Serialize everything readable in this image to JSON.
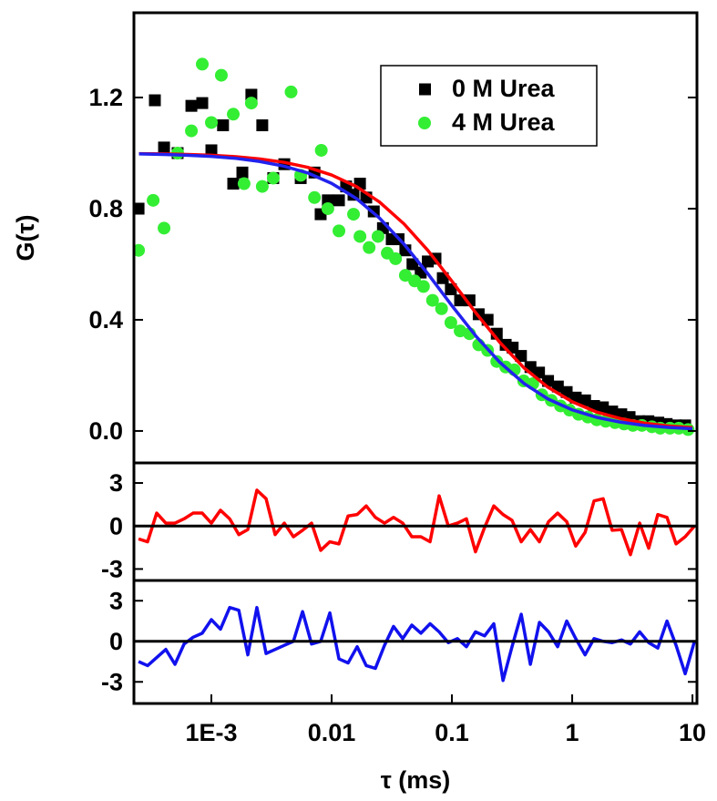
{
  "chart_data": [
    {
      "type": "scatter",
      "ylabel": "G(τ)",
      "xscale": "log",
      "xlim": [
        0.000227,
        10.9
      ],
      "ylim": [
        -0.115,
        1.505
      ],
      "yticks": [
        {
          "value": 0,
          "label": "0.0"
        },
        0.4,
        0.8,
        1.2
      ],
      "legend": "upper right",
      "series": [
        {
          "name": "0 M Urea",
          "type": "scatter",
          "marker": "square",
          "color": "#000000",
          "x": [
            0.000248,
            0.000339,
            0.000404,
            0.000524,
            0.000682,
            0.00084,
            0.001,
            0.00125,
            0.00152,
            0.00181,
            0.00215,
            0.00265,
            0.00327,
            0.00404,
            0.00553,
            0.0072,
            0.0081,
            0.0093,
            0.0115,
            0.0132,
            0.0152,
            0.0172,
            0.0194,
            0.0224,
            0.0267,
            0.0316,
            0.036,
            0.041,
            0.047,
            0.055,
            0.063,
            0.073,
            0.084,
            0.098,
            0.117,
            0.14,
            0.167,
            0.198,
            0.236,
            0.28,
            0.32,
            0.375,
            0.45,
            0.53,
            0.63,
            0.76,
            0.9,
            1.07,
            1.28,
            1.52,
            1.8,
            2.15,
            2.56,
            3.0,
            3.6,
            4.3,
            5.2,
            6.1,
            7.3,
            8.7
          ],
          "values": [
            0.8,
            1.19,
            1.02,
            1.0,
            1.17,
            1.18,
            1.01,
            1.1,
            0.89,
            0.93,
            1.21,
            1.1,
            0.91,
            0.96,
            0.91,
            0.93,
            0.78,
            0.83,
            0.83,
            0.88,
            0.85,
            0.89,
            0.84,
            0.79,
            0.73,
            0.69,
            0.69,
            0.65,
            0.6,
            0.57,
            0.61,
            0.62,
            0.55,
            0.51,
            0.47,
            0.47,
            0.42,
            0.4,
            0.35,
            0.31,
            0.3,
            0.27,
            0.23,
            0.21,
            0.18,
            0.16,
            0.14,
            0.12,
            0.11,
            0.09,
            0.085,
            0.07,
            0.06,
            0.05,
            0.035,
            0.035,
            0.03,
            0.025,
            0.02,
            0.02
          ]
        },
        {
          "name": "4 M Urea",
          "type": "scatter",
          "marker": "circle",
          "color": "#33ee33",
          "x": [
            0.000248,
            0.000328,
            0.000404,
            0.000524,
            0.000682,
            0.00084,
            0.001,
            0.00121,
            0.00152,
            0.00187,
            0.00215,
            0.00265,
            0.00327,
            0.0046,
            0.00553,
            0.0072,
            0.0082,
            0.0093,
            0.0115,
            0.0152,
            0.0172,
            0.0205,
            0.0243,
            0.029,
            0.034,
            0.041,
            0.049,
            0.058,
            0.069,
            0.082,
            0.098,
            0.117,
            0.14,
            0.167,
            0.198,
            0.236,
            0.28,
            0.33,
            0.395,
            0.47,
            0.56,
            0.67,
            0.8,
            0.95,
            1.13,
            1.35,
            1.6,
            1.9,
            2.27,
            2.7,
            3.2,
            3.8,
            4.6,
            5.4,
            6.5,
            7.7,
            9.2
          ],
          "values": [
            0.65,
            0.83,
            0.73,
            1.0,
            1.08,
            1.32,
            1.11,
            1.28,
            1.14,
            0.89,
            1.18,
            0.88,
            0.91,
            1.22,
            0.92,
            0.84,
            1.01,
            0.8,
            0.72,
            0.78,
            0.7,
            0.66,
            0.7,
            0.64,
            0.62,
            0.56,
            0.54,
            0.52,
            0.47,
            0.44,
            0.39,
            0.36,
            0.35,
            0.31,
            0.29,
            0.25,
            0.23,
            0.22,
            0.18,
            0.17,
            0.13,
            0.11,
            0.09,
            0.075,
            0.06,
            0.05,
            0.04,
            0.035,
            0.03,
            0.025,
            0.02,
            0.02,
            0.015,
            0.01,
            0.01,
            0.01,
            0.005
          ]
        },
        {
          "type": "line",
          "color": "#ff0000",
          "x": [
            0.00025,
            0.0004,
            0.00063,
            0.001,
            0.0016,
            0.0025,
            0.004,
            0.0063,
            0.01,
            0.016,
            0.025,
            0.04,
            0.063,
            0.1,
            0.16,
            0.25,
            0.4,
            0.63,
            1,
            1.6,
            2.5,
            4,
            6.3,
            10
          ],
          "values": [
            0.998,
            0.997,
            0.995,
            0.992,
            0.987,
            0.979,
            0.967,
            0.949,
            0.921,
            0.88,
            0.824,
            0.745,
            0.65,
            0.539,
            0.422,
            0.319,
            0.226,
            0.157,
            0.105,
            0.068,
            0.045,
            0.028,
            0.018,
            0.012
          ]
        },
        {
          "type": "line",
          "color": "#2222ee",
          "x": [
            0.00025,
            0.0004,
            0.00063,
            0.001,
            0.0016,
            0.0025,
            0.004,
            0.0063,
            0.01,
            0.016,
            0.025,
            0.04,
            0.063,
            0.1,
            0.16,
            0.25,
            0.4,
            0.63,
            1,
            1.6,
            2.5,
            4,
            6.3,
            10
          ],
          "values": [
            0.997,
            0.995,
            0.992,
            0.988,
            0.981,
            0.97,
            0.953,
            0.929,
            0.891,
            0.837,
            0.766,
            0.672,
            0.566,
            0.451,
            0.339,
            0.247,
            0.17,
            0.115,
            0.076,
            0.049,
            0.032,
            0.02,
            0.013,
            0.008
          ]
        }
      ]
    },
    {
      "type": "line",
      "xscale": "log",
      "xlim": [
        0.000227,
        10.9
      ],
      "ylim": [
        -3.8,
        4.4
      ],
      "yticks": [
        -3,
        0,
        3
      ],
      "zero_line": 0,
      "series": [
        {
          "type": "line",
          "color": "#ff0000",
          "x": [
            0.000248,
            0.000295,
            0.000351,
            0.000418,
            0.000498,
            0.000593,
            0.000705,
            0.000839,
            0.001,
            0.00119,
            0.00142,
            0.00169,
            0.00201,
            0.00239,
            0.00285,
            0.00339,
            0.00404,
            0.00481,
            0.00573,
            0.00681,
            0.00811,
            0.00966,
            0.0115,
            0.0137,
            0.0163,
            0.0194,
            0.0231,
            0.0275,
            0.0327,
            0.039,
            0.0464,
            0.0552,
            0.0658,
            0.0783,
            0.0933,
            0.111,
            0.132,
            0.157,
            0.187,
            0.223,
            0.266,
            0.316,
            0.377,
            0.449,
            0.534,
            0.636,
            0.757,
            0.901,
            1.07,
            1.28,
            1.52,
            1.81,
            2.15,
            2.57,
            3.05,
            3.64,
            4.33,
            5.15,
            6.14,
            7.31,
            8.7,
            10.4
          ],
          "values": [
            -0.9,
            -1.1,
            0.9,
            0.2,
            0.2,
            0.5,
            0.9,
            0.9,
            0.2,
            1.1,
            0.5,
            -0.6,
            -0.25,
            2.5,
            1.9,
            -0.6,
            0.2,
            -0.75,
            -0.3,
            0.2,
            -1.7,
            -1.1,
            -1.25,
            0.7,
            0.8,
            1.4,
            0.6,
            0.2,
            0.6,
            0.2,
            -0.75,
            -0.75,
            -1.1,
            2.1,
            0,
            0.2,
            0.5,
            -1.8,
            -0.1,
            1.4,
            0.8,
            0.4,
            -1.1,
            -0.25,
            -1.1,
            0.3,
            0.9,
            0.3,
            -1.4,
            -0.45,
            1.75,
            1.9,
            -0.3,
            -0.25,
            -2.0,
            0.2,
            -1.55,
            0.8,
            0.6,
            -1.25,
            -0.75,
            0
          ]
        }
      ]
    },
    {
      "type": "line",
      "xscale": "log",
      "xlim": [
        0.000227,
        10.9
      ],
      "ylim": [
        -4.6,
        4.5
      ],
      "yticks": [
        -3,
        0,
        3
      ],
      "zero_line": 0,
      "xlabel": "τ (ms)",
      "xticks": [
        {
          "value": 0.001,
          "label": "1E-3"
        },
        0.01,
        0.1,
        1,
        10
      ],
      "series": [
        {
          "type": "line",
          "color": "#1111ee",
          "x": [
            0.000248,
            0.000295,
            0.000351,
            0.000418,
            0.000498,
            0.000593,
            0.000705,
            0.000839,
            0.001,
            0.00119,
            0.00142,
            0.00169,
            0.00201,
            0.00239,
            0.00285,
            0.00339,
            0.00404,
            0.00481,
            0.00573,
            0.00681,
            0.00811,
            0.00966,
            0.0115,
            0.0137,
            0.0163,
            0.0194,
            0.0231,
            0.0275,
            0.0327,
            0.039,
            0.0464,
            0.0552,
            0.0658,
            0.0783,
            0.0933,
            0.111,
            0.132,
            0.157,
            0.187,
            0.223,
            0.266,
            0.316,
            0.377,
            0.449,
            0.534,
            0.636,
            0.757,
            0.901,
            1.07,
            1.28,
            1.52,
            1.81,
            2.15,
            2.57,
            3.05,
            3.64,
            4.33,
            5.15,
            6.14,
            7.31,
            8.7,
            10.4
          ],
          "values": [
            -1.5,
            -1.8,
            -1.2,
            -0.6,
            -1.7,
            -0.2,
            0.3,
            0.6,
            1.6,
            0.9,
            2.5,
            2.3,
            -1.0,
            2.5,
            -0.9,
            -0.6,
            -0.3,
            0,
            2.2,
            -0.2,
            0,
            2.1,
            -1.3,
            -1.6,
            -0.4,
            -1.8,
            -2.0,
            -0.3,
            1.1,
            0.2,
            1.2,
            0.6,
            1.3,
            0.7,
            -0.1,
            0.2,
            -0.4,
            0.7,
            0.4,
            1.3,
            -2.9,
            -0.4,
            2.0,
            -1.7,
            1.4,
            0.7,
            -0.4,
            1.5,
            0.2,
            -1.0,
            0.2,
            0,
            -0.1,
            0.1,
            -0.2,
            0.7,
            -0.1,
            -0.5,
            1.5,
            -0.3,
            -2.4,
            0
          ]
        }
      ]
    }
  ]
}
